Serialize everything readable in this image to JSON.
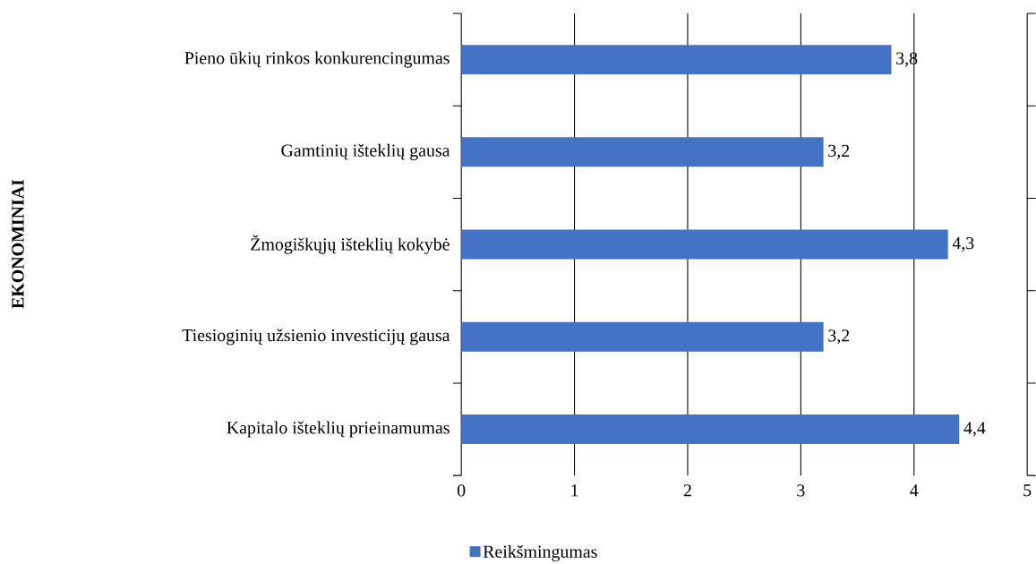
{
  "chart_data": {
    "type": "bar",
    "orientation": "horizontal",
    "annotations": [
      "EKONOMINIAI"
    ],
    "categories": [
      "Pieno ūkių rinkos konkurencingumas",
      "Gamtinių išteklių gausa",
      "Žmogiškųjų išteklių kokybė",
      "Tiesioginių užsienio investicijų gausa",
      "Kapitalo išteklių prieinamumas"
    ],
    "series": [
      {
        "name": "Reikšmingumas",
        "color": "#4472c4",
        "values": [
          3.8,
          3.2,
          4.3,
          3.2,
          4.4
        ],
        "value_labels": [
          "3,8",
          "3,2",
          "4,3",
          "3,2",
          "4,4"
        ]
      }
    ],
    "xlim": [
      0,
      5
    ],
    "xticks": [
      0,
      1,
      2,
      3,
      4,
      5
    ],
    "grid": "x",
    "legend": "bottom"
  }
}
